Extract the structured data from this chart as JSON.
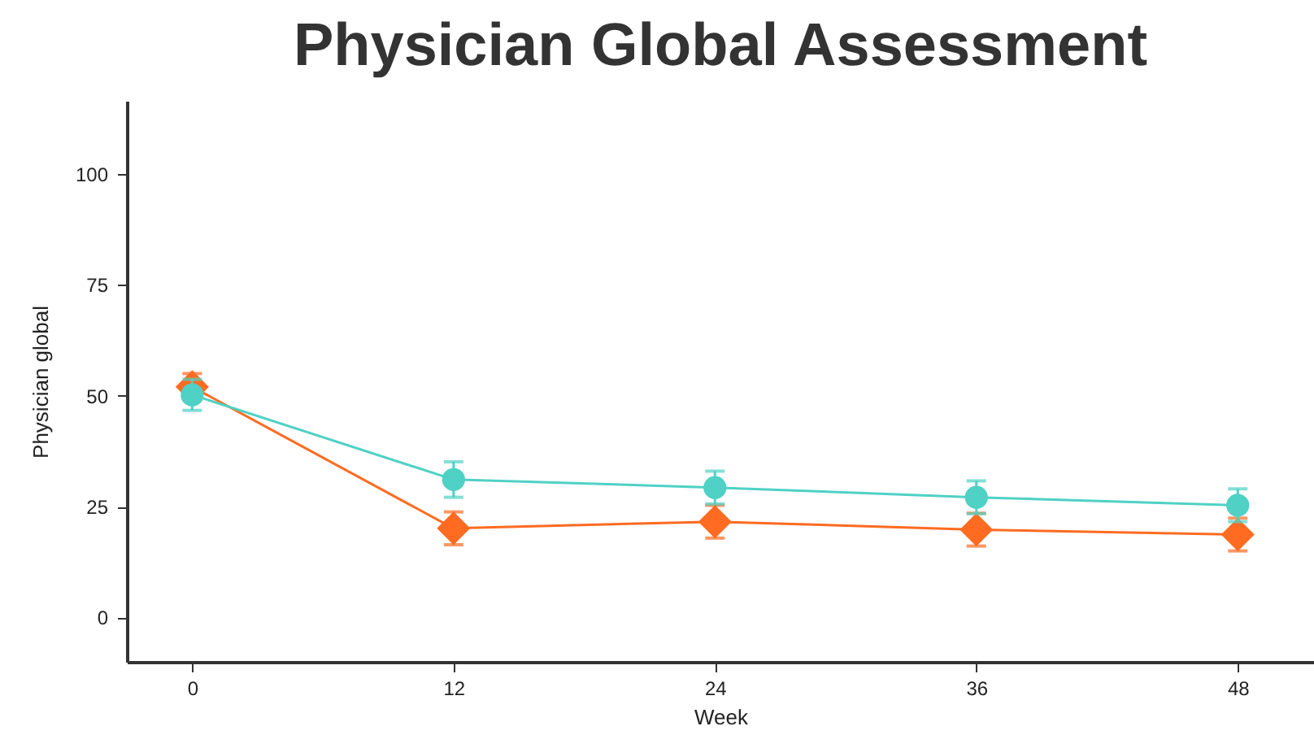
{
  "chart_data": {
    "type": "line",
    "title": "Physician Global Assessment",
    "xlabel": "Week",
    "ylabel": "Physician global",
    "x": [
      0,
      12,
      24,
      36,
      48
    ],
    "series": [
      {
        "color": "#ff6b21",
        "marker": "diamond",
        "values": [
          52,
          20.1,
          21.6,
          19.8,
          18.7
        ],
        "errors": [
          3,
          3.7,
          3.7,
          3.7,
          3.7
        ]
      },
      {
        "color": "#4fd1c5",
        "marker": "circle",
        "values": [
          50.2,
          31.1,
          29.3,
          27.1,
          25.3
        ],
        "errors": [
          3.5,
          4,
          3.7,
          3.7,
          3.7
        ]
      }
    ],
    "xlim": [
      -3,
      51.5
    ],
    "xticks": [
      0,
      12,
      24,
      36,
      48
    ],
    "ylim": [
      -10,
      116.5
    ],
    "yticks": [
      0,
      25,
      50,
      75,
      100
    ],
    "grid": false
  }
}
